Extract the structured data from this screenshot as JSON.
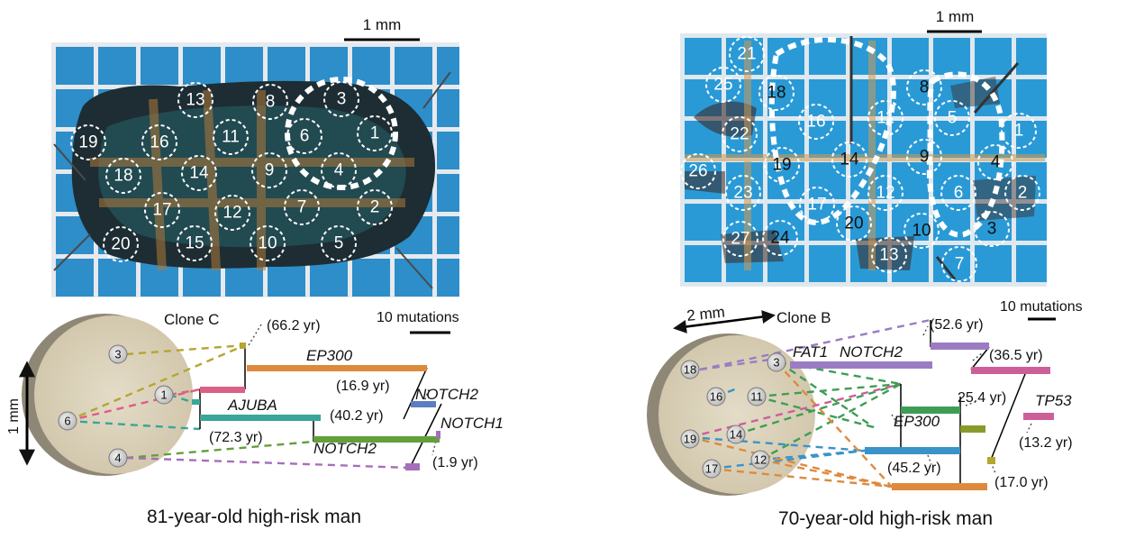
{
  "left_panel": {
    "scale_bar_label": "1 mm",
    "photo_spots": [
      "3",
      "1",
      "6",
      "4",
      "2",
      "5",
      "7",
      "8",
      "9",
      "10",
      "11",
      "12",
      "13",
      "14",
      "15",
      "16",
      "17",
      "18",
      "19",
      "20"
    ],
    "clone_label": "Clone C",
    "mutation_scale_label": "10 mutations",
    "vertical_scale_label": "1 mm",
    "disk_spots": [
      "3",
      "1",
      "6",
      "4"
    ],
    "tree_labels": {
      "age_root": "(66.2 yr)",
      "gene_ep300": "EP300",
      "age_a": "(16.9 yr)",
      "gene_notch2_top": "NOTCH2",
      "gene_ajuba": "AJUBA",
      "age_b": "(40.2 yr)",
      "gene_notch1": "NOTCH1",
      "age_c": "(72.3 yr)",
      "gene_notch2_bottom": "NOTCH2",
      "age_d": "(1.9 yr)"
    },
    "caption": "81-year-old high-risk man",
    "colors": {
      "olive": "#b5a531",
      "orange": "#dd8a3d",
      "pink": "#dc5f86",
      "teal": "#3aa599",
      "green": "#63a03a",
      "purple": "#a66fb9",
      "blue": "#5b7fc1"
    }
  },
  "right_panel": {
    "scale_bar_label": "1 mm",
    "photo_spots": [
      "21",
      "25",
      "18",
      "16",
      "11",
      "5",
      "8",
      "1",
      "22",
      "26",
      "19",
      "14",
      "9",
      "4",
      "23",
      "12",
      "6",
      "2",
      "17",
      "20",
      "10",
      "3",
      "27",
      "24",
      "13",
      "7"
    ],
    "clone_label": "Clone B",
    "disk_scale_label": "2 mm",
    "mutation_scale_label": "10 mutations",
    "disk_spots": [
      "18",
      "3",
      "16",
      "11",
      "19",
      "14",
      "17",
      "12"
    ],
    "tree_labels": {
      "gene_fat1": "FAT1",
      "gene_notch2": "NOTCH2",
      "age_top": "(52.6 yr)",
      "age_b": "(36.5 yr)",
      "age_c": "25.4 yr)",
      "gene_tp53": "TP53",
      "gene_ep300": "EP300",
      "age_d": "(13.2 yr)",
      "age_e": "(45.2 yr)",
      "age_f": "(17.0 yr)"
    },
    "caption": "70-year-old high-risk man",
    "colors": {
      "purple": "#9a7cc3",
      "pink": "#cc5f9a",
      "green": "#3e9d55",
      "blue": "#3a93c8",
      "olive": "#8a9a2a",
      "orange": "#dd8a3d"
    }
  }
}
